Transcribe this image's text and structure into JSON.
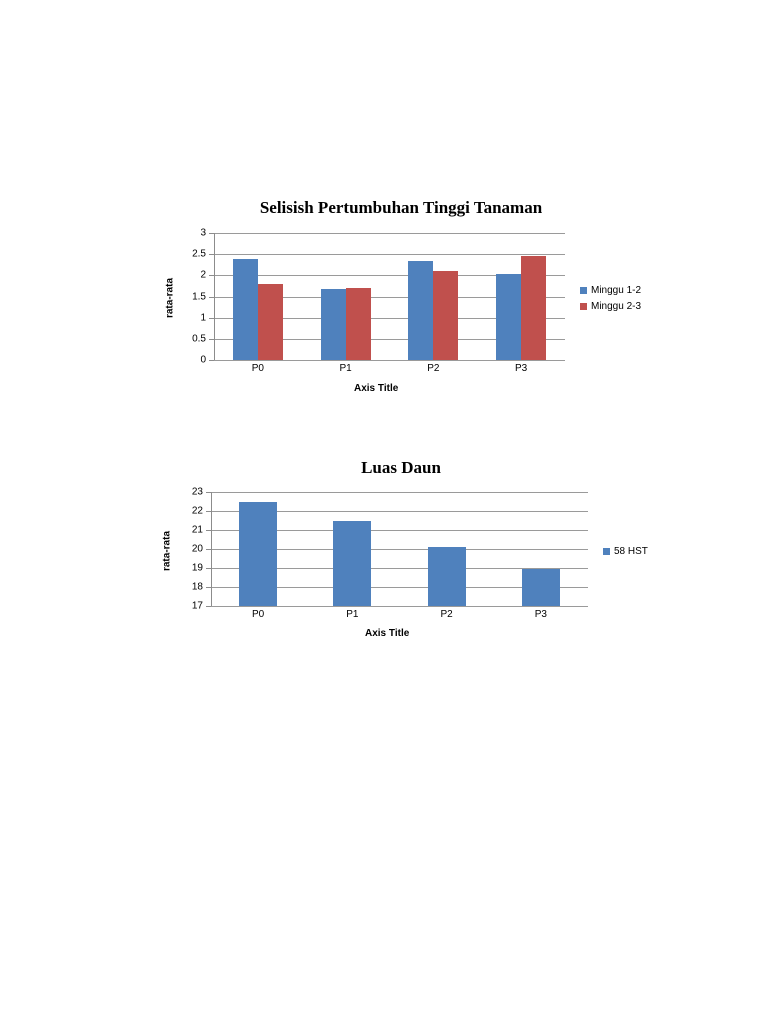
{
  "chart_data": [
    {
      "type": "bar",
      "title": "Selisish Pertumbuhan Tinggi Tanaman",
      "xlabel": "Axis Title",
      "ylabel": "rata-rata",
      "categories": [
        "P0",
        "P1",
        "P2",
        "P3"
      ],
      "series": [
        {
          "name": "Minggu 1-2",
          "color": "#4f81bd",
          "values": [
            2.38,
            1.67,
            2.33,
            2.03
          ]
        },
        {
          "name": "Minggu 2-3",
          "color": "#c0504d",
          "values": [
            1.8,
            1.69,
            2.1,
            2.45
          ]
        }
      ],
      "ylim": [
        0,
        3
      ],
      "yticks": [
        "0",
        "0.5",
        "1",
        "1.5",
        "2",
        "2.5",
        "3"
      ],
      "grid": true,
      "legend_position": "right"
    },
    {
      "type": "bar",
      "title": "Luas Daun",
      "xlabel": "Axis Title",
      "ylabel": "rata-rata",
      "categories": [
        "P0",
        "P1",
        "P2",
        "P3"
      ],
      "series": [
        {
          "name": "58 HST",
          "color": "#4f81bd",
          "values": [
            22.47,
            21.46,
            20.11,
            18.95
          ]
        }
      ],
      "ylim": [
        17,
        23
      ],
      "yticks": [
        "17",
        "18",
        "19",
        "20",
        "21",
        "22",
        "23"
      ],
      "grid": true,
      "legend_position": "right"
    }
  ]
}
